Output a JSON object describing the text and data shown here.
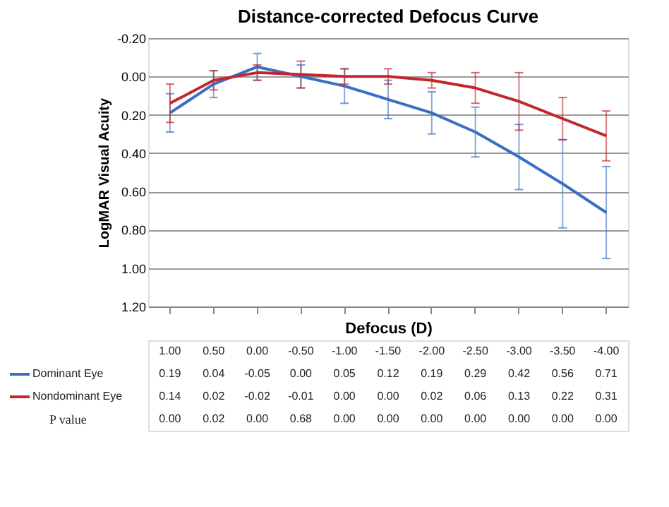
{
  "chart_data": {
    "type": "line",
    "title": "Distance-corrected Defocus Curve",
    "xlabel": "Defocus (D)",
    "ylabel": "LogMAR Visual Acuity",
    "categories": [
      "1.00",
      "0.50",
      "0.00",
      "-0.50",
      "-1.00",
      "-1.50",
      "-2.00",
      "-2.50",
      "-3.00",
      "-3.50",
      "-4.00"
    ],
    "series": [
      {
        "name": "Dominant Eye",
        "color": "#3a6fc4",
        "values": [
          0.19,
          0.04,
          -0.05,
          0.0,
          0.05,
          0.12,
          0.19,
          0.29,
          0.42,
          0.56,
          0.71
        ],
        "errors": [
          0.1,
          0.07,
          0.07,
          0.06,
          0.09,
          0.1,
          0.11,
          0.13,
          0.17,
          0.23,
          0.24
        ],
        "value_labels": [
          "0.19",
          "0.04",
          "-0.05",
          "0.00",
          "0.05",
          "0.12",
          "0.19",
          "0.29",
          "0.42",
          "0.56",
          "0.71"
        ]
      },
      {
        "name": "Nondominant Eye",
        "color": "#c0282e",
        "values": [
          0.14,
          0.02,
          -0.02,
          -0.01,
          0.0,
          0.0,
          0.02,
          0.06,
          0.13,
          0.22,
          0.31
        ],
        "errors": [
          0.1,
          0.05,
          0.04,
          0.07,
          0.04,
          0.04,
          0.04,
          0.08,
          0.15,
          0.11,
          0.13
        ],
        "value_labels": [
          "0.14",
          "0.02",
          "-0.02",
          "-0.01",
          "0.00",
          "0.00",
          "0.02",
          "0.06",
          "0.13",
          "0.22",
          "0.31"
        ]
      }
    ],
    "ylim": [
      1.2,
      -0.2
    ],
    "yticks": [
      {
        "value": -0.2,
        "label": "-0.20"
      },
      {
        "value": 0,
        "label": "0.00"
      },
      {
        "value": 0.2,
        "label": "0.20"
      },
      {
        "value": 0.4,
        "label": "0.40"
      },
      {
        "value": 0.6,
        "label": "0.60"
      },
      {
        "value": 0.8,
        "label": "0.80"
      },
      {
        "value": 1.0,
        "label": "1.00"
      },
      {
        "value": 1.2,
        "label": "1.20"
      }
    ],
    "grid": "y",
    "legend": "bottom",
    "tick_labels": "y",
    "line_style": "solid",
    "marker": "none",
    "annotations": [
      "P value",
      "0.00",
      "0.02",
      "0.00",
      "0.68",
      "0.00",
      "0.00",
      "0.00",
      "0.00",
      "0.00",
      "0.00",
      "0.00"
    ]
  }
}
